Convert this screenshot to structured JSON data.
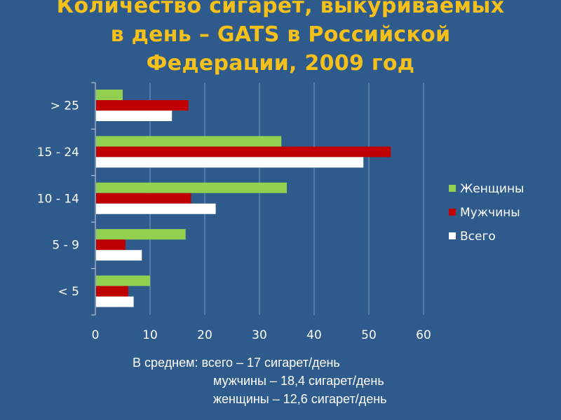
{
  "title": {
    "line1": "Количество сигарет, выкуриваемых",
    "line2": "в день – GATS в Российской",
    "line3": "Федерации, 2009 год"
  },
  "colors": {
    "background": "#2f5b8c",
    "title": "#f5c01a",
    "women": "#92d050",
    "men": "#c00000",
    "total": "#ffffff"
  },
  "chart_data": {
    "type": "bar",
    "orientation": "horizontal",
    "categories": [
      "> 25",
      "15 - 24",
      "10 - 14",
      "5 - 9",
      "< 5"
    ],
    "series": [
      {
        "name": "Женщины",
        "color": "#92d050",
        "values": [
          5,
          34,
          35,
          16.5,
          10
        ]
      },
      {
        "name": "Мужчины",
        "color": "#c00000",
        "values": [
          17,
          54,
          17.5,
          5.5,
          6
        ]
      },
      {
        "name": "Всего",
        "color": "#ffffff",
        "values": [
          14,
          49,
          22,
          8.5,
          7
        ]
      }
    ],
    "xlim": [
      0,
      60
    ],
    "xticks": [
      "0",
      "10",
      "20",
      "30",
      "40",
      "50",
      "60"
    ],
    "grid": true,
    "legend_position": "right"
  },
  "notes": {
    "line1": "В среднем: всего – 17 сигарет/день",
    "line2": "мужчины – 18,4 сигарет/день",
    "line3": "женщины – 12,6 сигарет/день"
  }
}
